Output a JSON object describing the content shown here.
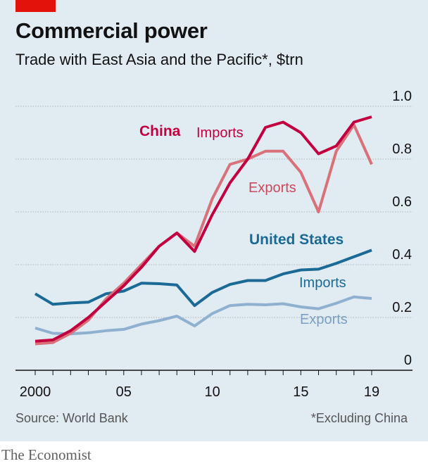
{
  "header": {
    "title": "Commercial power",
    "subtitle": "Trade with East Asia and the Pacific*, $trn"
  },
  "footer": {
    "source": "Source: World Bank",
    "footnote": "*Excluding China",
    "brand": "The Economist"
  },
  "colors": {
    "china_imports": "#c2003f",
    "china_exports": "#d8717a",
    "us_imports": "#1a6a95",
    "us_exports": "#8fb1cf",
    "background": "#e1ebf2",
    "brand_red": "#e3120b"
  },
  "chart_data": {
    "type": "line",
    "ylim": [
      0,
      1.0
    ],
    "y_ticks": [
      "1.0",
      "0.8",
      "0.6",
      "0.4",
      "0.2",
      "0"
    ],
    "x_ticks": [
      "2000",
      "05",
      "10",
      "15",
      "19"
    ],
    "x": [
      2000,
      2001,
      2002,
      2003,
      2004,
      2005,
      2006,
      2007,
      2008,
      2009,
      2010,
      2011,
      2012,
      2013,
      2014,
      2015,
      2016,
      2017,
      2018,
      2019
    ],
    "grid": true,
    "labels": {
      "china": "China",
      "china_imports": "Imports",
      "china_exports": "Exports",
      "us": "United States",
      "us_imports": "Imports",
      "us_exports": "Exports"
    },
    "series": [
      {
        "group": "China",
        "name": "Imports",
        "color": "#c2003f",
        "values": [
          0.11,
          0.115,
          0.15,
          0.2,
          0.26,
          0.32,
          0.39,
          0.47,
          0.52,
          0.45,
          0.59,
          0.71,
          0.8,
          0.92,
          0.94,
          0.9,
          0.82,
          0.85,
          0.94,
          0.96
        ]
      },
      {
        "group": "China",
        "name": "Exports",
        "color": "#d8717a",
        "values": [
          0.1,
          0.105,
          0.14,
          0.19,
          0.27,
          0.33,
          0.4,
          0.47,
          0.52,
          0.47,
          0.65,
          0.78,
          0.8,
          0.83,
          0.83,
          0.75,
          0.6,
          0.83,
          0.93,
          0.78
        ]
      },
      {
        "group": "United States",
        "name": "Imports",
        "color": "#1a6a95",
        "values": [
          0.29,
          0.25,
          0.255,
          0.258,
          0.29,
          0.3,
          0.33,
          0.328,
          0.323,
          0.245,
          0.295,
          0.325,
          0.34,
          0.34,
          0.365,
          0.38,
          0.383,
          0.405,
          0.43,
          0.455
        ]
      },
      {
        "group": "United States",
        "name": "Exports",
        "color": "#8fb1cf",
        "values": [
          0.16,
          0.14,
          0.138,
          0.142,
          0.15,
          0.155,
          0.175,
          0.188,
          0.205,
          0.168,
          0.215,
          0.245,
          0.25,
          0.248,
          0.252,
          0.24,
          0.233,
          0.254,
          0.278,
          0.272
        ]
      }
    ]
  }
}
